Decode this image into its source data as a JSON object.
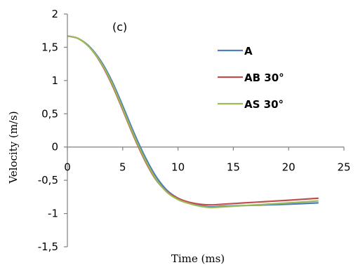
{
  "chart_data": {
    "type": "line",
    "annotation": "(c)",
    "xlabel": "Time (ms)",
    "ylabel": "Velocity (m/s)",
    "xlim": [
      0,
      25
    ],
    "ylim": [
      -1.5,
      2
    ],
    "x_ticks": [
      "0",
      "5",
      "10",
      "15",
      "20",
      "25"
    ],
    "y_ticks": [
      "2",
      "1,5",
      "1",
      "0,5",
      "0",
      "-0,5",
      "-1",
      "-1,5"
    ],
    "grid": false,
    "legend_position": "top-right",
    "series": [
      {
        "name": "A",
        "color": "#4a7ebb",
        "points": [
          [
            0,
            1.67
          ],
          [
            1,
            1.63
          ],
          [
            2,
            1.51
          ],
          [
            3,
            1.3
          ],
          [
            4,
            1.0
          ],
          [
            5,
            0.62
          ],
          [
            6,
            0.22
          ],
          [
            7,
            -0.14
          ],
          [
            8,
            -0.44
          ],
          [
            9,
            -0.65
          ],
          [
            10,
            -0.77
          ],
          [
            11,
            -0.84
          ],
          [
            12,
            -0.88
          ],
          [
            13,
            -0.9
          ],
          [
            14,
            -0.89
          ],
          [
            16,
            -0.88
          ],
          [
            18,
            -0.87
          ],
          [
            20,
            -0.86
          ],
          [
            22.7,
            -0.84
          ]
        ]
      },
      {
        "name": "AB 30°",
        "color": "#c0504d",
        "points": [
          [
            0,
            1.67
          ],
          [
            1,
            1.63
          ],
          [
            2,
            1.5
          ],
          [
            3,
            1.27
          ],
          [
            4,
            0.95
          ],
          [
            5,
            0.56
          ],
          [
            6,
            0.16
          ],
          [
            7,
            -0.2
          ],
          [
            8,
            -0.49
          ],
          [
            9,
            -0.67
          ],
          [
            10,
            -0.77
          ],
          [
            11,
            -0.83
          ],
          [
            12,
            -0.86
          ],
          [
            13,
            -0.87
          ],
          [
            14,
            -0.86
          ],
          [
            16,
            -0.84
          ],
          [
            18,
            -0.82
          ],
          [
            20,
            -0.8
          ],
          [
            22.7,
            -0.77
          ]
        ]
      },
      {
        "name": "AS 30°",
        "color": "#9bbb59",
        "points": [
          [
            0,
            1.67
          ],
          [
            1,
            1.63
          ],
          [
            2,
            1.5
          ],
          [
            3,
            1.28
          ],
          [
            4,
            0.97
          ],
          [
            5,
            0.58
          ],
          [
            6,
            0.18
          ],
          [
            7,
            -0.18
          ],
          [
            8,
            -0.48
          ],
          [
            9,
            -0.68
          ],
          [
            10,
            -0.79
          ],
          [
            11,
            -0.85
          ],
          [
            12,
            -0.89
          ],
          [
            13,
            -0.91
          ],
          [
            14,
            -0.9
          ],
          [
            16,
            -0.88
          ],
          [
            18,
            -0.86
          ],
          [
            20,
            -0.84
          ],
          [
            22.7,
            -0.81
          ]
        ]
      }
    ]
  }
}
